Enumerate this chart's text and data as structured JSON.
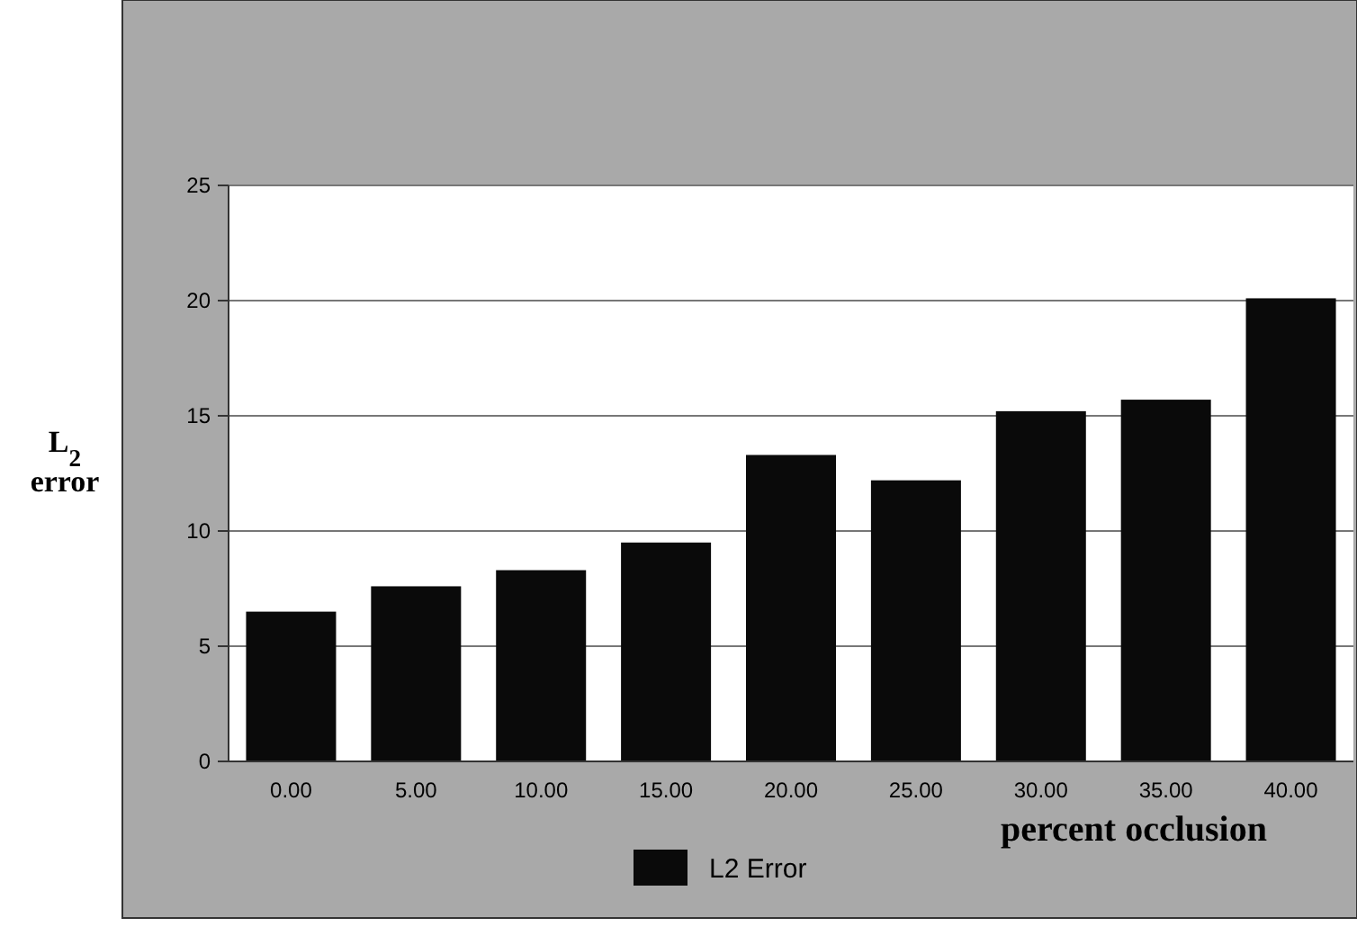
{
  "chart_data": {
    "type": "bar",
    "xlabel": "percent occlusion",
    "ylabel": "L$_{2}$ error",
    "categories": [
      "0.00",
      "5.00",
      "10.00",
      "15.00",
      "20.00",
      "25.00",
      "30.00",
      "35.00",
      "40.00"
    ],
    "series": [
      {
        "name": "L2 Error",
        "color": "#0a0a0a",
        "values": [
          6.5,
          7.6,
          8.3,
          9.5,
          13.3,
          12.2,
          15.2,
          15.7,
          20.1
        ]
      }
    ],
    "ylim": [
      0,
      25
    ],
    "yticks": [
      0,
      5,
      10,
      15,
      20,
      25
    ],
    "grid": "y",
    "legend": "bottom"
  }
}
